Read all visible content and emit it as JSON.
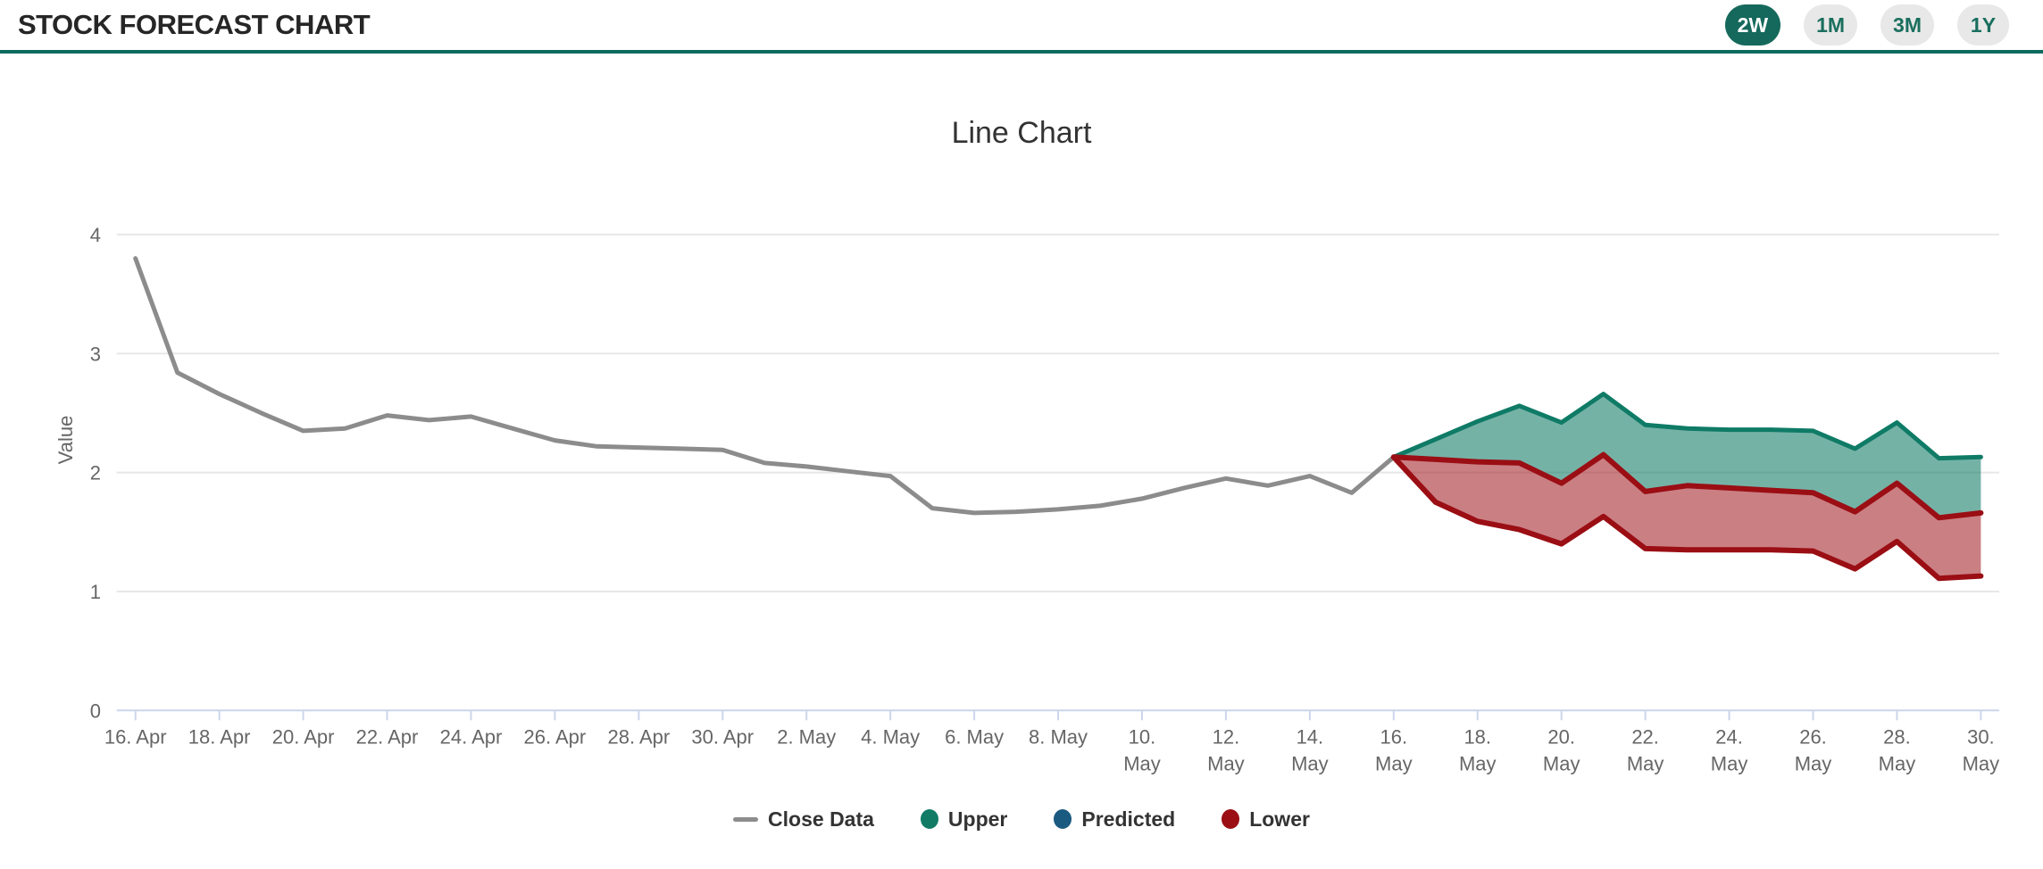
{
  "header": {
    "title": "STOCK FORECAST CHART",
    "accent_color": "#15695c",
    "accent_underline_color": "#0d6b5d",
    "ranges": [
      {
        "label": "2W",
        "active": true
      },
      {
        "label": "1M",
        "active": false
      },
      {
        "label": "3M",
        "active": false
      },
      {
        "label": "1Y",
        "active": false
      }
    ]
  },
  "chart_data": {
    "type": "line",
    "title": "Line Chart",
    "xlabel": "",
    "ylabel": "Value",
    "ylim": [
      0,
      4
    ],
    "y_ticks": [
      0,
      1,
      2,
      3,
      4
    ],
    "grid": "horizontal-only",
    "legend_position": "bottom",
    "x_axis": {
      "start_label": "16. Apr",
      "end_label": "30. May",
      "total_days": 45,
      "tick_interval_days": 2
    },
    "x_tick_labels": [
      "16. Apr",
      "18. Apr",
      "20. Apr",
      "22. Apr",
      "24. Apr",
      "26. Apr",
      "28. Apr",
      "30. Apr",
      "2. May",
      "4. May",
      "6. May",
      "8. May",
      "10.\nMay",
      "12.\nMay",
      "14.\nMay",
      "16.\nMay",
      "18.\nMay",
      "20.\nMay",
      "22.\nMay",
      "24.\nMay",
      "26.\nMay",
      "28.\nMay",
      "30.\nMay"
    ],
    "series": [
      {
        "name": "Close Data",
        "type": "line",
        "color": "#8c8c8c",
        "line_width": 5,
        "start_day": 0,
        "values": [
          3.8,
          2.84,
          2.66,
          2.5,
          2.35,
          2.37,
          2.48,
          2.44,
          2.47,
          2.37,
          2.27,
          2.22,
          2.21,
          2.2,
          2.19,
          2.08,
          2.05,
          2.01,
          1.97,
          1.7,
          1.66,
          1.67,
          1.69,
          1.72,
          1.78,
          1.87,
          1.95,
          1.89,
          1.97,
          1.83,
          2.13
        ]
      },
      {
        "name": "Upper",
        "type": "line-with-fill-to-predicted",
        "color": "#0f7b66",
        "fill_color": "rgba(17,123,102,0.58)",
        "line_width": 5,
        "start_day": 30,
        "values": [
          2.13,
          2.28,
          2.43,
          2.56,
          2.42,
          2.66,
          2.4,
          2.37,
          2.36,
          2.36,
          2.35,
          2.2,
          2.42,
          2.12,
          2.13
        ]
      },
      {
        "name": "Predicted",
        "type": "line",
        "color": "#9a0e14",
        "line_width": 6,
        "start_day": 30,
        "values": [
          2.13,
          2.11,
          2.09,
          2.08,
          1.91,
          2.15,
          1.84,
          1.89,
          1.87,
          1.85,
          1.83,
          1.67,
          1.91,
          1.62,
          1.66
        ]
      },
      {
        "name": "Lower",
        "type": "line-with-fill-to-predicted",
        "color": "#9a0e14",
        "fill_color": "rgba(154,14,20,0.53)",
        "line_width": 6,
        "start_day": 30,
        "values": [
          2.13,
          1.75,
          1.59,
          1.52,
          1.4,
          1.63,
          1.36,
          1.35,
          1.35,
          1.35,
          1.34,
          1.19,
          1.42,
          1.11,
          1.13
        ]
      }
    ],
    "legend": [
      {
        "label": "Close Data",
        "marker": "line",
        "color": "#8c8c8c"
      },
      {
        "label": "Upper",
        "marker": "circle",
        "color": "#117b66"
      },
      {
        "label": "Predicted",
        "marker": "circle",
        "color": "#1a5a80"
      },
      {
        "label": "Lower",
        "marker": "circle",
        "color": "#9a0e14"
      }
    ]
  }
}
